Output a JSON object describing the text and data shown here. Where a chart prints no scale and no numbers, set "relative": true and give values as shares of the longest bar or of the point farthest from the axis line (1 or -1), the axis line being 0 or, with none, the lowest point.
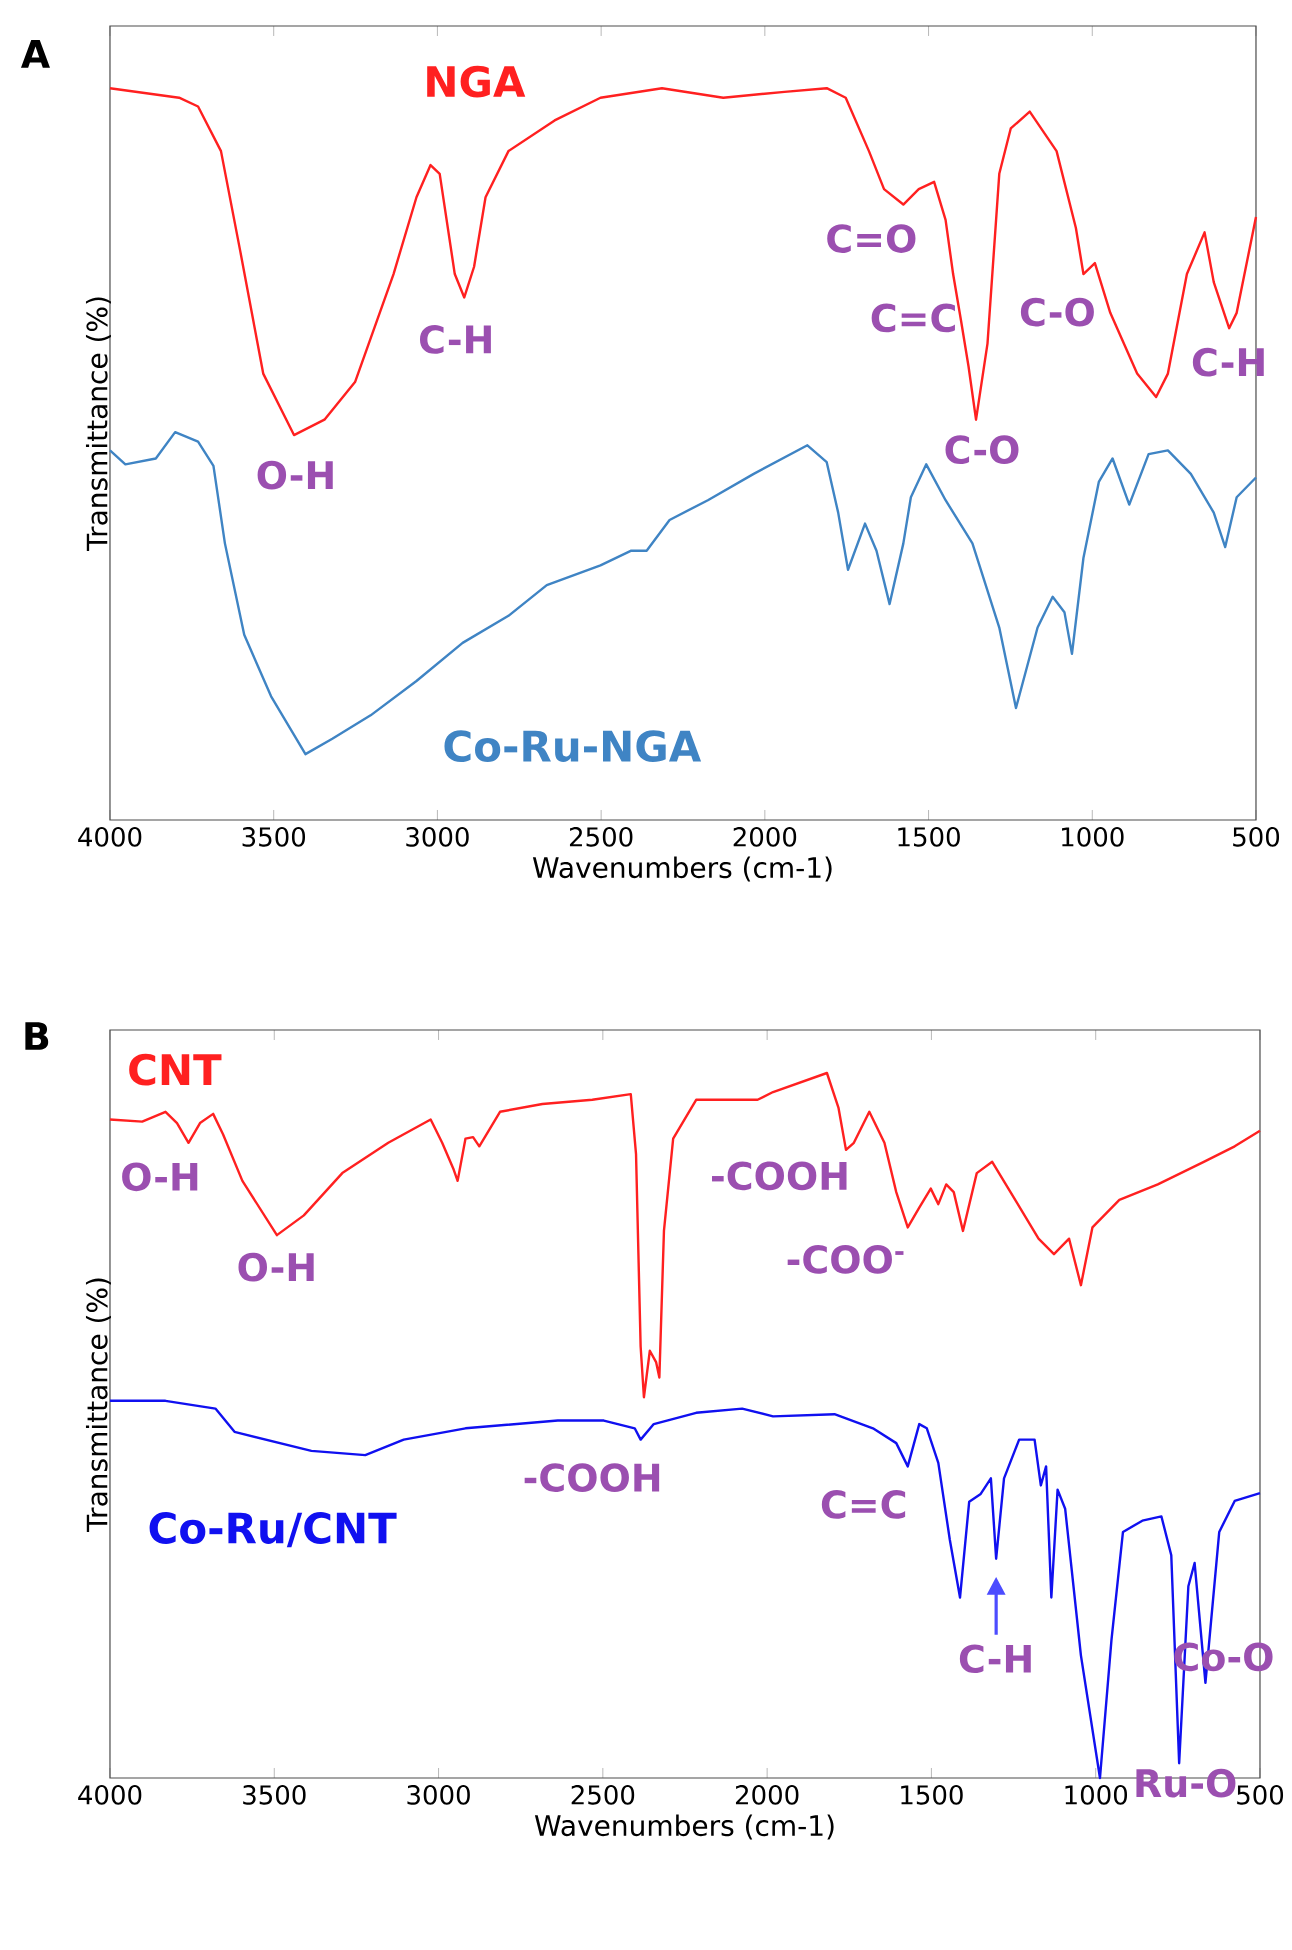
{
  "chart_data": [
    {
      "type": "line",
      "relative": true,
      "xlabel": "Wavenumbers (cm-1)",
      "ylabel": "Transmittance (%)",
      "xlim": [
        4000,
        500
      ],
      "xticks": [
        4000,
        3500,
        3000,
        2500,
        2000,
        1500,
        1000,
        500
      ],
      "tick_labels": "x",
      "annotations": [
        "A",
        {
          "text": "O-H",
          "x": 3438,
          "y": 0.526
        },
        {
          "text": "C-H",
          "x": 2918,
          "y": 0.714
        },
        {
          "text": "C=O",
          "x": 1577,
          "y": 0.841
        },
        {
          "text": "C=C",
          "x": 1448,
          "y": 0.82
        },
        {
          "text": "C-O",
          "x": 1355,
          "y": 0.547
        },
        {
          "text": "C-O",
          "x": 1027,
          "y": 0.746
        },
        {
          "text": "C-H",
          "x": 582,
          "y": 0.672
        }
      ],
      "series": [
        {
          "name": "NGA",
          "color": "#ff2020",
          "x": [
            4000,
            3789,
            3731,
            3661,
            3602,
            3532,
            3438,
            3345,
            3251,
            3134,
            3064,
            3021,
            2993,
            2947,
            2918,
            2888,
            2853,
            2783,
            2642,
            2502,
            2314,
            2127,
            1940,
            1811,
            1753,
            1682,
            1636,
            1577,
            1530,
            1483,
            1448,
            1425,
            1401,
            1378,
            1355,
            1320,
            1284,
            1249,
            1191,
            1109,
            1050,
            1027,
            992,
            945,
            863,
            805,
            769,
            711,
            657,
            629,
            582,
            559,
            500
          ],
          "values": [
            1.0,
            0.987,
            0.975,
            0.914,
            0.777,
            0.61,
            0.526,
            0.547,
            0.599,
            0.746,
            0.851,
            0.895,
            0.883,
            0.746,
            0.714,
            0.756,
            0.851,
            0.914,
            0.956,
            0.987,
            1.0,
            0.987,
            0.995,
            1.0,
            0.987,
            0.914,
            0.862,
            0.841,
            0.862,
            0.872,
            0.82,
            0.746,
            0.683,
            0.62,
            0.547,
            0.651,
            0.883,
            0.945,
            0.968,
            0.914,
            0.809,
            0.746,
            0.761,
            0.693,
            0.61,
            0.578,
            0.61,
            0.746,
            0.803,
            0.735,
            0.672,
            0.693,
            0.824
          ]
        },
        {
          "name": "Co-Ru-NGA",
          "color": "#3f84c4",
          "x": [
            4000,
            3953,
            3860,
            3801,
            3731,
            3684,
            3649,
            3590,
            3508,
            3403,
            3321,
            3204,
            3064,
            2923,
            2783,
            2666,
            2502,
            2408,
            2361,
            2291,
            2174,
            2034,
            1870,
            1811,
            1776,
            1746,
            1694,
            1659,
            1619,
            1577,
            1554,
            1507,
            1448,
            1366,
            1284,
            1233,
            1167,
            1121,
            1085,
            1062,
            1027,
            980,
            938,
            887,
            828,
            769,
            699,
            629,
            594,
            559,
            500
          ],
          "values": [
            0.505,
            0.486,
            0.494,
            0.53,
            0.517,
            0.484,
            0.378,
            0.253,
            0.169,
            0.09,
            0.111,
            0.143,
            0.19,
            0.242,
            0.279,
            0.321,
            0.348,
            0.368,
            0.368,
            0.41,
            0.437,
            0.473,
            0.512,
            0.489,
            0.42,
            0.342,
            0.405,
            0.368,
            0.295,
            0.378,
            0.441,
            0.486,
            0.437,
            0.378,
            0.263,
            0.153,
            0.263,
            0.305,
            0.284,
            0.227,
            0.358,
            0.462,
            0.494,
            0.431,
            0.5,
            0.505,
            0.473,
            0.42,
            0.373,
            0.441,
            0.468
          ]
        }
      ]
    },
    {
      "type": "line",
      "relative": true,
      "xlabel": "Wavenumbers (cm-1)",
      "ylabel": "Transmittance (%)",
      "xlim": [
        4000,
        500
      ],
      "xticks": [
        4000,
        3500,
        3000,
        2500,
        2000,
        1500,
        1000,
        500
      ],
      "tick_labels": "x",
      "annotations": [
        "B",
        {
          "text": "O-H",
          "x": 3761,
          "y": 0.901
        },
        {
          "text": "O-H",
          "x": 3492,
          "y": 0.77
        },
        {
          "text": "-COOH",
          "x": 1760,
          "y": 0.891
        },
        {
          "text": "-COO$^{-}$",
          "x": 1572,
          "y": 0.781
        },
        {
          "text": "-COOH",
          "x": 2385,
          "y": 0.48
        },
        {
          "text": "C=C",
          "x": 1572,
          "y": 0.442
        },
        {
          "text": "C-H",
          "x": 1303,
          "y": 0.311
        },
        {
          "text": "Ru-O",
          "x": 746,
          "y": 0.021
        },
        {
          "text": "Co-O",
          "x": 666,
          "y": 0.135
        }
      ],
      "series": [
        {
          "name": "CNT",
          "color": "#ff2020",
          "x": [
            4000,
            3902,
            3831,
            3796,
            3761,
            3726,
            3686,
            3656,
            3597,
            3492,
            3410,
            3293,
            3153,
            3024,
            2989,
            2954,
            2942,
            2918,
            2895,
            2876,
            2813,
            2684,
            2532,
            2415,
            2399,
            2385,
            2375,
            2357,
            2338,
            2328,
            2314,
            2286,
            2216,
            2029,
            1982,
            1818,
            1783,
            1760,
            1736,
            1689,
            1643,
            1607,
            1572,
            1537,
            1502,
            1479,
            1455,
            1432,
            1404,
            1362,
            1315,
            1245,
            1174,
            1127,
            1081,
            1045,
            1010,
            928,
            811,
            671,
            577,
            500
          ],
          "values": [
            0.934,
            0.931,
            0.945,
            0.929,
            0.901,
            0.929,
            0.942,
            0.913,
            0.847,
            0.77,
            0.798,
            0.858,
            0.901,
            0.934,
            0.901,
            0.863,
            0.847,
            0.907,
            0.909,
            0.896,
            0.945,
            0.956,
            0.962,
            0.97,
            0.885,
            0.612,
            0.54,
            0.606,
            0.59,
            0.568,
            0.776,
            0.907,
            0.962,
            0.962,
            0.973,
            1.0,
            0.951,
            0.891,
            0.901,
            0.945,
            0.901,
            0.831,
            0.781,
            0.809,
            0.836,
            0.814,
            0.842,
            0.831,
            0.776,
            0.858,
            0.874,
            0.82,
            0.765,
            0.743,
            0.765,
            0.699,
            0.781,
            0.82,
            0.842,
            0.874,
            0.896,
            0.918
          ]
        },
        {
          "name": "Co-Ru/CNT",
          "color": "#1010f0",
          "x": [
            4000,
            3831,
            3679,
            3621,
            3387,
            3223,
            3106,
            2918,
            2637,
            2497,
            2403,
            2385,
            2345,
            2216,
            2076,
            1982,
            1795,
            1678,
            1607,
            1572,
            1537,
            1514,
            1479,
            1444,
            1413,
            1385,
            1350,
            1319,
            1303,
            1279,
            1233,
            1186,
            1167,
            1151,
            1135,
            1116,
            1093,
            1045,
            987,
            952,
            917,
            858,
            800,
            770,
            746,
            718,
            699,
            666,
            624,
            577,
            500
          ],
          "values": [
            0.535,
            0.535,
            0.524,
            0.491,
            0.464,
            0.458,
            0.48,
            0.496,
            0.507,
            0.507,
            0.496,
            0.48,
            0.502,
            0.518,
            0.524,
            0.513,
            0.516,
            0.496,
            0.475,
            0.442,
            0.502,
            0.496,
            0.447,
            0.338,
            0.256,
            0.392,
            0.403,
            0.425,
            0.311,
            0.425,
            0.48,
            0.48,
            0.415,
            0.442,
            0.256,
            0.409,
            0.382,
            0.174,
            0.0,
            0.196,
            0.349,
            0.365,
            0.371,
            0.316,
            0.021,
            0.272,
            0.305,
            0.135,
            0.349,
            0.393,
            0.404
          ]
        }
      ]
    }
  ]
}
